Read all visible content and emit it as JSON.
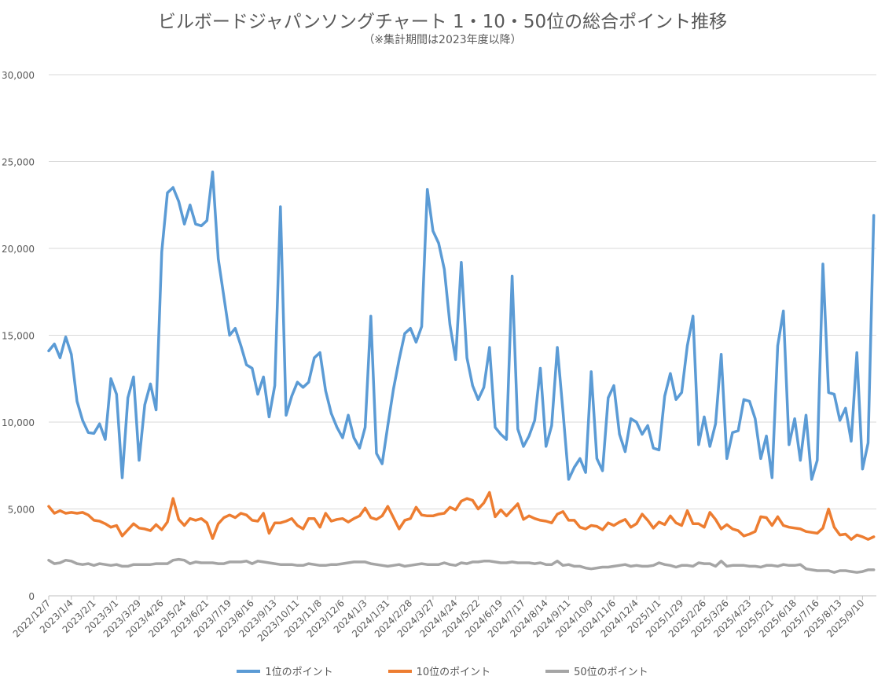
{
  "chart_data": {
    "type": "line",
    "title": "ビルボードジャパンソングチャート 1・10・50位の総合ポイント推移",
    "subtitle": "（※集計期間は2023年度以降）",
    "xlabel": "",
    "ylabel": "",
    "ylim": [
      0,
      30000
    ],
    "y_ticks": [
      "0",
      "5,000",
      "10,000",
      "15,000",
      "20,000",
      "25,000",
      "30,000"
    ],
    "grid": true,
    "legend": "bottom",
    "x_tick_every": 4,
    "x_tick_labels": [
      "2022/12/7",
      "2023/1/4",
      "2023/2/1",
      "2023/3/1",
      "2023/3/29",
      "2023/4/26",
      "2023/5/24",
      "2023/6/21",
      "2023/7/19",
      "2023/8/16",
      "2023/9/13",
      "2023/10/11",
      "2023/11/8",
      "2023/12/6",
      "2024/1/3",
      "2024/1/31",
      "2024/2/28",
      "2024/3/27",
      "2024/4/24",
      "2024/5/22",
      "2024/6/19",
      "2024/7/17",
      "2024/8/14",
      "2024/9/11",
      "2024/10/9",
      "2024/11/6",
      "2024/12/4",
      "2025/1/1",
      "2025/1/29",
      "2025/2/26",
      "2025/3/26",
      "2025/4/23",
      "2025/5/21",
      "2025/6/18",
      "2025/7/16",
      "2025/8/13",
      "2025/9/10"
    ],
    "series": [
      {
        "name": "1位のポイント",
        "color": "#5b9bd5",
        "values": [
          14100,
          14500,
          13700,
          14900,
          13900,
          11200,
          10100,
          9400,
          9350,
          9900,
          9000,
          12500,
          11600,
          6800,
          11400,
          12600,
          7800,
          11000,
          12200,
          10700,
          19800,
          23200,
          23500,
          22700,
          21400,
          22500,
          21400,
          21300,
          21600,
          24400,
          19400,
          17200,
          15000,
          15400,
          14400,
          13300,
          13100,
          11600,
          12600,
          10300,
          12100,
          22400,
          10400,
          11500,
          12300,
          12000,
          12300,
          13700,
          14000,
          11800,
          10500,
          9700,
          9100,
          10400,
          9100,
          8500,
          9700,
          16100,
          8200,
          7600,
          9800,
          11900,
          13600,
          15100,
          15400,
          14600,
          15500,
          23400,
          21000,
          20300,
          18800,
          15600,
          13600,
          19200,
          13700,
          12100,
          11300,
          12000,
          14300,
          9700,
          9300,
          9000,
          18400,
          9600,
          8600,
          9200,
          10100,
          13100,
          8600,
          9800,
          14300,
          10600,
          6700,
          7400,
          7900,
          7100,
          12900,
          7900,
          7200,
          11400,
          12100,
          9300,
          8300,
          10200,
          10000,
          9300,
          9800,
          8500,
          8400,
          11500,
          12800,
          11300,
          11700,
          14400,
          16100,
          8700,
          10300,
          8600,
          9900,
          13900,
          7900,
          9400,
          9500,
          11300,
          11200,
          10200,
          7900,
          9200,
          6800,
          14400,
          16400,
          8700,
          10200,
          7800,
          10400,
          6700,
          7800,
          19100,
          11700,
          11600,
          10100,
          10800,
          8900,
          14000,
          7300,
          8800,
          21900
        ]
      },
      {
        "name": "10位のポイント",
        "color": "#ed7d31",
        "values": [
          5150,
          4750,
          4900,
          4750,
          4800,
          4750,
          4800,
          4650,
          4350,
          4300,
          4150,
          3950,
          4050,
          3450,
          3800,
          4150,
          3900,
          3850,
          3750,
          4100,
          3800,
          4250,
          5600,
          4400,
          4050,
          4450,
          4350,
          4450,
          4200,
          3300,
          4150,
          4500,
          4650,
          4500,
          4750,
          4650,
          4350,
          4300,
          4750,
          3600,
          4200,
          4200,
          4300,
          4450,
          4050,
          3850,
          4450,
          4450,
          3950,
          4750,
          4300,
          4400,
          4450,
          4250,
          4450,
          4600,
          5050,
          4500,
          4400,
          4600,
          5150,
          4500,
          3850,
          4350,
          4450,
          5100,
          4650,
          4600,
          4600,
          4700,
          4750,
          5100,
          4950,
          5450,
          5600,
          5500,
          5000,
          5350,
          5950,
          4550,
          4950,
          4600,
          4950,
          5300,
          4400,
          4600,
          4450,
          4350,
          4300,
          4200,
          4700,
          4850,
          4350,
          4350,
          3950,
          3850,
          4050,
          4000,
          3800,
          4200,
          4050,
          4250,
          4400,
          3950,
          4150,
          4700,
          4350,
          3900,
          4250,
          4100,
          4600,
          4200,
          4050,
          4900,
          4150,
          4150,
          3950,
          4800,
          4400,
          3850,
          4100,
          3850,
          3750,
          3450,
          3550,
          3700,
          4550,
          4500,
          4050,
          4550,
          4050,
          3950,
          3900,
          3850,
          3700,
          3650,
          3600,
          3900,
          5000,
          3950,
          3500,
          3550,
          3250,
          3500,
          3400,
          3250,
          3400
        ]
      },
      {
        "name": "50位のポイント",
        "color": "#a5a5a5",
        "values": [
          2050,
          1850,
          1900,
          2050,
          2000,
          1850,
          1800,
          1850,
          1750,
          1850,
          1800,
          1750,
          1800,
          1700,
          1700,
          1800,
          1800,
          1800,
          1800,
          1850,
          1850,
          1850,
          2050,
          2100,
          2050,
          1850,
          1950,
          1900,
          1900,
          1900,
          1850,
          1850,
          1950,
          1950,
          1950,
          2000,
          1850,
          2000,
          1950,
          1900,
          1850,
          1800,
          1800,
          1800,
          1750,
          1750,
          1850,
          1800,
          1750,
          1750,
          1800,
          1800,
          1850,
          1900,
          1950,
          1950,
          1950,
          1850,
          1800,
          1750,
          1700,
          1750,
          1800,
          1700,
          1750,
          1800,
          1850,
          1800,
          1800,
          1800,
          1900,
          1800,
          1750,
          1900,
          1850,
          1950,
          1950,
          2000,
          2000,
          1950,
          1900,
          1900,
          1950,
          1900,
          1900,
          1900,
          1850,
          1900,
          1800,
          1800,
          2000,
          1750,
          1800,
          1700,
          1700,
          1600,
          1550,
          1600,
          1650,
          1650,
          1700,
          1750,
          1800,
          1700,
          1750,
          1700,
          1700,
          1750,
          1900,
          1800,
          1750,
          1650,
          1750,
          1750,
          1700,
          1900,
          1850,
          1850,
          1700,
          2000,
          1700,
          1750,
          1750,
          1750,
          1700,
          1700,
          1650,
          1750,
          1750,
          1700,
          1800,
          1750,
          1750,
          1800,
          1550,
          1500,
          1450,
          1450,
          1450,
          1350,
          1450,
          1450,
          1400,
          1350,
          1400,
          1500,
          1500
        ]
      }
    ]
  }
}
